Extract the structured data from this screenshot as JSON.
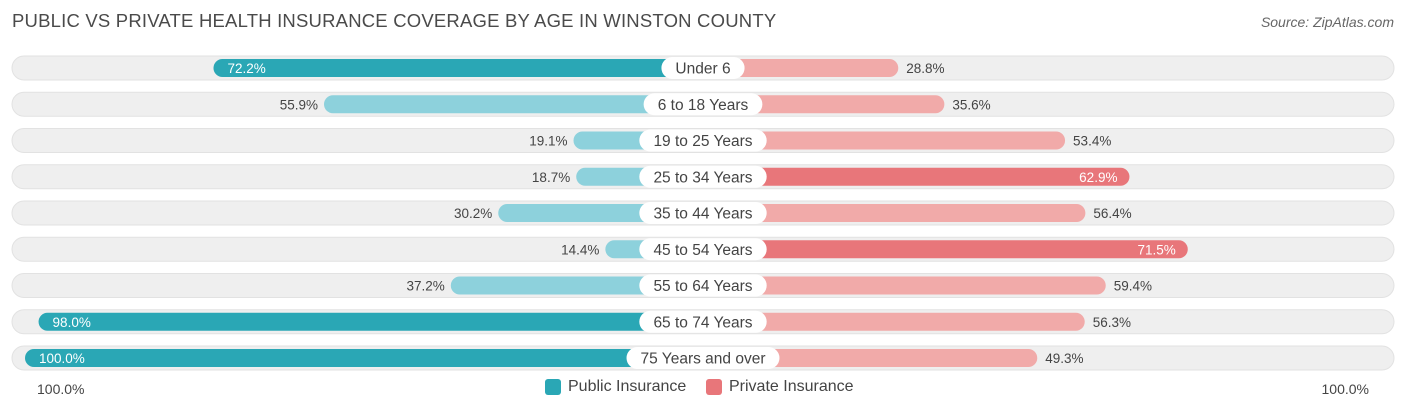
{
  "title": "PUBLIC VS PRIVATE HEALTH INSURANCE COVERAGE BY AGE IN WINSTON COUNTY",
  "source": "Source: ZipAtlas.com",
  "colors": {
    "public_dark": "#2aa7b5",
    "public_light": "#8dd1dc",
    "private_dark": "#e8767a",
    "private_light": "#f1aaa9",
    "row_bg": "#efefef",
    "row_border": "#e2e2e2"
  },
  "chart_data": {
    "type": "bar",
    "orientation": "diverging-horizontal",
    "title": "PUBLIC VS PRIVATE HEALTH INSURANCE COVERAGE BY AGE IN WINSTON COUNTY",
    "categories": [
      "Under 6",
      "6 to 18 Years",
      "19 to 25 Years",
      "25 to 34 Years",
      "35 to 44 Years",
      "45 to 54 Years",
      "55 to 64 Years",
      "65 to 74 Years",
      "75 Years and over"
    ],
    "series": [
      {
        "name": "Public Insurance",
        "values": [
          72.2,
          55.9,
          19.1,
          18.7,
          30.2,
          14.4,
          37.2,
          98.0,
          100.0
        ],
        "labels": [
          "72.2%",
          "55.9%",
          "19.1%",
          "18.7%",
          "30.2%",
          "14.4%",
          "37.2%",
          "98.0%",
          "100.0%"
        ]
      },
      {
        "name": "Private Insurance",
        "values": [
          28.8,
          35.6,
          53.4,
          62.9,
          56.4,
          71.5,
          59.4,
          56.3,
          49.3
        ],
        "labels": [
          "28.8%",
          "35.6%",
          "53.4%",
          "62.9%",
          "56.4%",
          "71.5%",
          "59.4%",
          "56.3%",
          "49.3%"
        ]
      }
    ],
    "xlim": [
      0,
      100
    ],
    "axis_left_label": "100.0%",
    "axis_right_label": "100.0%",
    "legend": [
      "Public Insurance",
      "Private Insurance"
    ],
    "legend_position": "bottom-center"
  }
}
